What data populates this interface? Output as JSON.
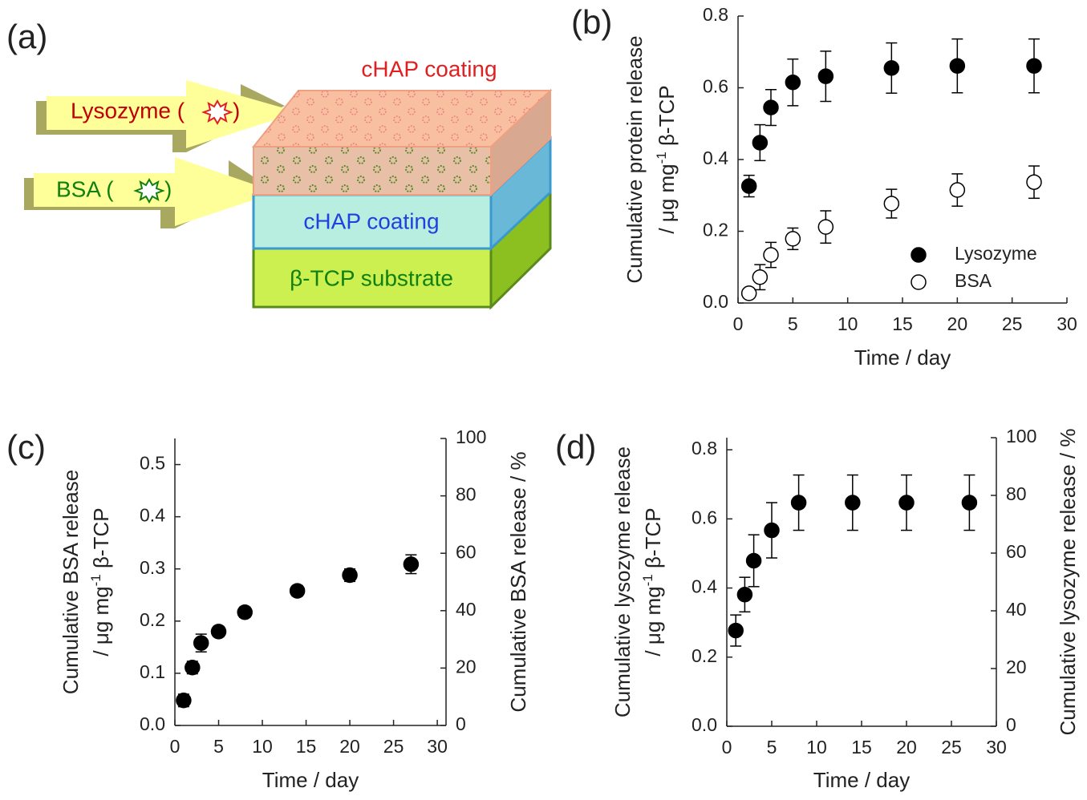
{
  "diagram": {
    "panel": "(a)",
    "top_layer": "cHAP coating",
    "lysozyme": "Lysozyme (",
    "lysozyme_close": ")",
    "bsa": "BSA (",
    "bsa_close": ")",
    "middle_layer": "cHAP coating",
    "substrate": "β-TCP substrate"
  },
  "chart_data": [
    {
      "type": "scatter",
      "panel": "(b)",
      "x_label": "Time / day",
      "y_label": [
        "Cumulative protein release",
        "/ μg mg",
        "-1",
        " β-TCP"
      ],
      "xlim": [
        0,
        30
      ],
      "xticks": [
        0,
        5,
        10,
        15,
        20,
        25,
        30
      ],
      "ylim": [
        0,
        0.8
      ],
      "yticks": [
        {
          "value": 0,
          "label": "0.0"
        },
        0.2,
        0.4,
        0.6,
        0.8
      ],
      "legend": "lower right",
      "series": [
        {
          "name": "Lysozyme",
          "color": "#000000",
          "fill": "#000000",
          "x": [
            1,
            2,
            3,
            5,
            8,
            14,
            20,
            27
          ],
          "values": [
            0.326,
            0.447,
            0.545,
            0.615,
            0.632,
            0.655,
            0.661,
            0.661
          ],
          "errors": [
            0.03,
            0.05,
            0.05,
            0.065,
            0.07,
            0.07,
            0.075,
            0.075
          ]
        },
        {
          "name": "BSA",
          "color": "#000000",
          "fill": "#ffffff",
          "x": [
            1,
            2,
            3,
            5,
            8,
            14,
            20,
            27
          ],
          "values": [
            0.027,
            0.072,
            0.134,
            0.179,
            0.212,
            0.277,
            0.315,
            0.337
          ],
          "errors": [
            0.01,
            0.035,
            0.035,
            0.03,
            0.045,
            0.04,
            0.045,
            0.045
          ]
        }
      ]
    },
    {
      "type": "scatter",
      "panel": "(c)",
      "x_label": "Time / day",
      "y_label": [
        "Cumulative BSA release",
        "/ μg mg",
        "-1",
        " β-TCP"
      ],
      "y2_label": "Cumulative BSA release / %",
      "xlim": [
        0,
        31
      ],
      "xticks": [
        0,
        5,
        10,
        15,
        20,
        25,
        30
      ],
      "ylim": [
        0,
        0.55
      ],
      "yticks": [
        {
          "value": 0,
          "label": "0.0"
        },
        0.1,
        0.2,
        0.3,
        0.4,
        0.5
      ],
      "y2lim": [
        0,
        100
      ],
      "y2ticks": [
        0,
        20,
        40,
        60,
        80,
        100
      ],
      "series": [
        {
          "color": "#000000",
          "fill": "#000000",
          "x": [
            1,
            2,
            3,
            5,
            8,
            14,
            20,
            27
          ],
          "values": [
            0.048,
            0.111,
            0.158,
            0.18,
            0.217,
            0.258,
            0.288,
            0.309
          ],
          "errors": [
            0.012,
            0.012,
            0.017,
            0.01,
            0.01,
            0.01,
            0.012,
            0.018
          ]
        }
      ]
    },
    {
      "type": "scatter",
      "panel": "(d)",
      "x_label": "Time / day",
      "y_label": [
        "Cumulative lysozyme release",
        "/ μg mg",
        "-1",
        " β-TCP"
      ],
      "y2_label": "Cumulative lysozyme release / %",
      "xlim": [
        0,
        30
      ],
      "xticks": [
        0,
        5,
        10,
        15,
        20,
        25,
        30
      ],
      "ylim": [
        0,
        0.835
      ],
      "yticks": [
        {
          "value": 0,
          "label": "0.0"
        },
        0.2,
        0.4,
        0.6,
        0.8
      ],
      "y2lim": [
        0,
        100
      ],
      "y2ticks": [
        0,
        20,
        40,
        60,
        80,
        100
      ],
      "series": [
        {
          "color": "#000000",
          "fill": "#000000",
          "x": [
            1,
            2,
            3,
            5,
            8,
            14,
            20,
            27
          ],
          "values": [
            0.277,
            0.381,
            0.479,
            0.567,
            0.647,
            0.647,
            0.647,
            0.647
          ],
          "errors": [
            0.045,
            0.05,
            0.075,
            0.08,
            0.08,
            0.08,
            0.08,
            0.08
          ]
        }
      ]
    }
  ]
}
